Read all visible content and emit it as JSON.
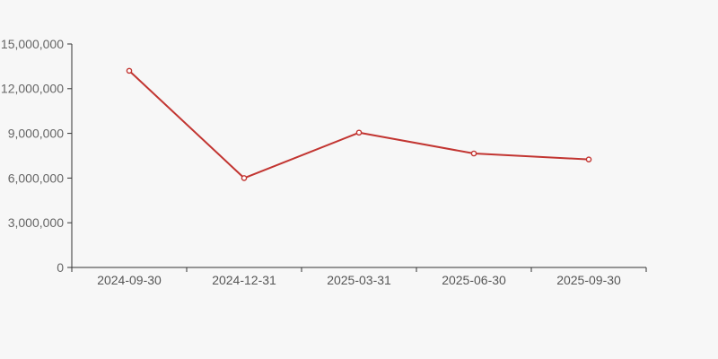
{
  "page": {
    "background_color": "#f7f7f7"
  },
  "chart_data": {
    "type": "line",
    "title": "",
    "subtitle": "",
    "xlabel": "",
    "ylabel": "",
    "categories": [
      "2024-09-30",
      "2024-12-31",
      "2025-03-31",
      "2025-06-30",
      "2025-09-30"
    ],
    "series": [
      {
        "name": "",
        "values": [
          13200000,
          6000000,
          9050000,
          7650000,
          7250000
        ],
        "color": "#c23531",
        "marker": "open-circle",
        "marker_fill": "#ffffff",
        "line_width": 2
      }
    ],
    "ylim": [
      0,
      15000000
    ],
    "y_ticks": [
      0,
      3000000,
      6000000,
      9000000,
      12000000,
      15000000
    ],
    "y_tick_labels": [
      "0",
      "3,000,000",
      "6,000,000",
      "9,000,000",
      "12,000,000",
      "15,000,000"
    ],
    "grid": false,
    "legend_position": "none",
    "axis_color": "#333333",
    "y_label_color": "#666666",
    "x_label_color": "#555555",
    "tick_label_font_size": 14
  }
}
